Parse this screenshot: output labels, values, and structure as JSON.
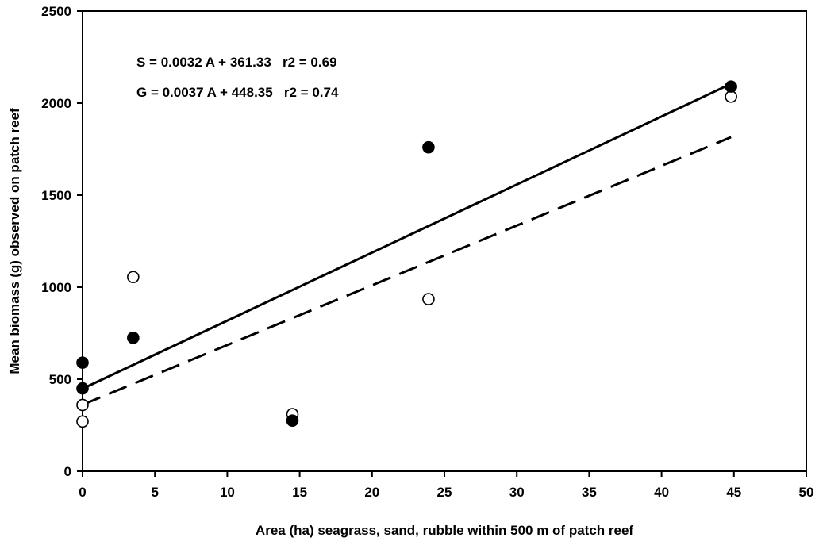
{
  "chart_data": {
    "type": "scatter",
    "title": "",
    "xlabel": "Area (ha) seagrass, sand, rubble within 500 m of patch reef",
    "ylabel": "Mean biomass (g) observed on patch reef",
    "xlim": [
      0,
      50
    ],
    "ylim": [
      0,
      2500
    ],
    "x_ticks": [
      0,
      5,
      10,
      15,
      20,
      25,
      30,
      35,
      40,
      45,
      50
    ],
    "y_ticks": [
      0,
      500,
      1000,
      1500,
      2000,
      2500
    ],
    "grid": false,
    "legend": "none",
    "series": [
      {
        "marker": "filled-circle",
        "color": "#000000",
        "points": [
          {
            "x": 0,
            "y": 590
          },
          {
            "x": 0,
            "y": 450
          },
          {
            "x": 3.5,
            "y": 725
          },
          {
            "x": 14.5,
            "y": 275
          },
          {
            "x": 23.9,
            "y": 1760
          },
          {
            "x": 44.8,
            "y": 2090
          }
        ]
      },
      {
        "marker": "open-circle",
        "color": "#000000",
        "points": [
          {
            "x": 0,
            "y": 360
          },
          {
            "x": 0,
            "y": 270
          },
          {
            "x": 3.5,
            "y": 1055
          },
          {
            "x": 14.5,
            "y": 310
          },
          {
            "x": 23.9,
            "y": 935
          },
          {
            "x": 44.8,
            "y": 2035
          }
        ]
      }
    ],
    "trendlines": [
      {
        "style": "solid",
        "color": "#000000",
        "points": [
          {
            "x": 0,
            "y": 448.35
          },
          {
            "x": 44.8,
            "y": 2105
          }
        ]
      },
      {
        "style": "dashed",
        "color": "#000000",
        "points": [
          {
            "x": 0,
            "y": 361.33
          },
          {
            "x": 44.8,
            "y": 1815
          }
        ]
      }
    ],
    "annotations": [
      "S = 0.0032 A + 361.33   r2 = 0.69",
      "G = 0.0037 A + 448.35   r2 = 0.74"
    ]
  }
}
